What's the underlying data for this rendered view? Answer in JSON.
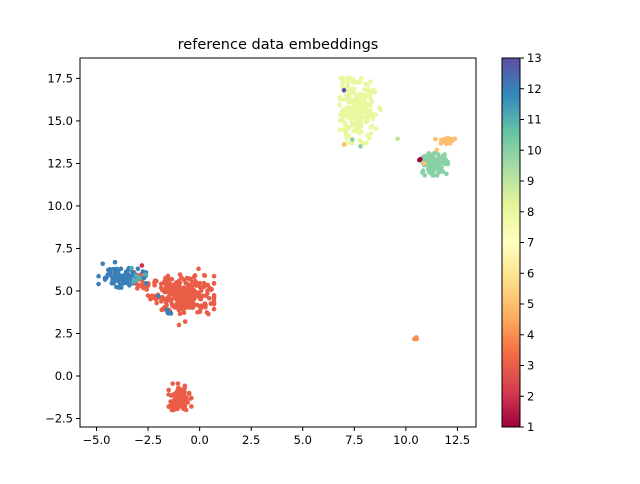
{
  "chart_data": {
    "type": "scatter",
    "title": "reference data embeddings",
    "xlabel": "",
    "ylabel": "",
    "xlim": [
      -5.8,
      13.4
    ],
    "ylim": [
      -3.0,
      18.7
    ],
    "xticks": [
      -5.0,
      -2.5,
      0.0,
      2.5,
      5.0,
      7.5,
      10.0,
      12.5
    ],
    "yticks": [
      -2.5,
      0.0,
      2.5,
      5.0,
      7.5,
      10.0,
      12.5,
      15.0,
      17.5
    ],
    "xtick_labels": [
      "−5.0",
      "−2.5",
      "0.0",
      "2.5",
      "5.0",
      "7.5",
      "10.0",
      "12.5"
    ],
    "ytick_labels": [
      "−2.5",
      "0.0",
      "2.5",
      "5.0",
      "7.5",
      "10.0",
      "12.5",
      "15.0",
      "17.5"
    ],
    "grid": false,
    "colormap": "Spectral",
    "colorbar": {
      "min": 1,
      "max": 13,
      "ticks": [
        1,
        2,
        3,
        4,
        5,
        6,
        7,
        8,
        9,
        10,
        11,
        12,
        13
      ],
      "tick_labels": [
        "1",
        "2",
        "3",
        "4",
        "5",
        "6",
        "7",
        "8",
        "9",
        "10",
        "11",
        "12",
        "13"
      ],
      "stops": [
        {
          "v": 0.0,
          "color": "#9e0142"
        },
        {
          "v": 0.1,
          "color": "#d53e4f"
        },
        {
          "v": 0.2,
          "color": "#f46d43"
        },
        {
          "v": 0.3,
          "color": "#fdae61"
        },
        {
          "v": 0.4,
          "color": "#fee08b"
        },
        {
          "v": 0.5,
          "color": "#ffffbf"
        },
        {
          "v": 0.6,
          "color": "#e6f598"
        },
        {
          "v": 0.7,
          "color": "#abdda4"
        },
        {
          "v": 0.8,
          "color": "#66c2a5"
        },
        {
          "v": 0.9,
          "color": "#3288bd"
        },
        {
          "v": 1.0,
          "color": "#5e4fa2"
        }
      ]
    },
    "clusters": [
      {
        "label": 3,
        "cx": -0.8,
        "cy": 4.8,
        "sx": 0.75,
        "sy": 0.55,
        "n": 260,
        "xr": [
          -2.5,
          0.7
        ],
        "yr": [
          2.9,
          6.3
        ]
      },
      {
        "label": 3,
        "cx": -1.0,
        "cy": -1.4,
        "sx": 0.25,
        "sy": 0.35,
        "n": 90,
        "xr": [
          -1.5,
          -0.4
        ],
        "yr": [
          -2.0,
          -0.4
        ]
      },
      {
        "label": 3,
        "cx": -2.8,
        "cy": 5.5,
        "sx": 0.3,
        "sy": 0.35,
        "n": 25,
        "xr": [
          -3.3,
          -2.2
        ],
        "yr": [
          4.9,
          6.5
        ]
      },
      {
        "label": 12,
        "cx": -3.9,
        "cy": 5.8,
        "sx": 0.5,
        "sy": 0.3,
        "n": 85,
        "xr": [
          -4.9,
          -2.6
        ],
        "yr": [
          5.2,
          6.7
        ]
      },
      {
        "label": 11,
        "cx": -3.0,
        "cy": 5.8,
        "sx": 0.3,
        "sy": 0.2,
        "n": 8,
        "xr": [
          -3.4,
          -2.6
        ],
        "yr": [
          5.5,
          6.4
        ]
      },
      {
        "label": 12,
        "cx": -1.5,
        "cy": 3.7,
        "sx": 0.1,
        "sy": 0.1,
        "n": 4,
        "xr": [
          -1.7,
          -1.3
        ],
        "yr": [
          3.6,
          3.9
        ]
      },
      {
        "label": 8,
        "cx": 7.6,
        "cy": 15.6,
        "sx": 0.45,
        "sy": 0.9,
        "n": 230,
        "xr": [
          6.8,
          8.8
        ],
        "yr": [
          13.7,
          17.5
        ]
      },
      {
        "label": 10,
        "cx": 11.4,
        "cy": 12.5,
        "sx": 0.3,
        "sy": 0.3,
        "n": 120,
        "xr": [
          10.8,
          12.1
        ],
        "yr": [
          11.8,
          13.1
        ]
      },
      {
        "label": 5,
        "cx": 12.0,
        "cy": 13.8,
        "sx": 0.3,
        "sy": 0.15,
        "n": 22,
        "xr": [
          11.4,
          12.6
        ],
        "yr": [
          13.4,
          14.2
        ]
      },
      {
        "label": 4,
        "cx": 10.5,
        "cy": 2.2,
        "sx": 0.05,
        "sy": 0.05,
        "n": 4,
        "xr": [
          10.4,
          10.6
        ],
        "yr": [
          2.1,
          2.3
        ]
      }
    ],
    "points": [
      {
        "x": 7.0,
        "y": 16.8,
        "label": 13
      },
      {
        "x": 10.65,
        "y": 12.7,
        "label": 1
      },
      {
        "x": 10.7,
        "y": 12.75,
        "label": 1
      },
      {
        "x": 9.6,
        "y": 13.95,
        "label": 9
      },
      {
        "x": 7.4,
        "y": 13.9,
        "label": 10
      },
      {
        "x": 7.8,
        "y": 13.5,
        "label": 10
      },
      {
        "x": 7.0,
        "y": 13.6,
        "label": 5
      },
      {
        "x": 10.9,
        "y": 12.5,
        "label": 5
      },
      {
        "x": 11.5,
        "y": 13.3,
        "label": 5
      },
      {
        "x": 11.3,
        "y": 12.9,
        "label": 10
      },
      {
        "x": -2.8,
        "y": 6.5,
        "label": 2
      },
      {
        "x": -1.0,
        "y": 3.0,
        "label": 3
      },
      {
        "x": -0.7,
        "y": 3.2,
        "label": 3
      },
      {
        "x": -1.05,
        "y": -0.45,
        "label": 3
      },
      {
        "x": -4.7,
        "y": 6.6,
        "label": 12
      },
      {
        "x": -2.0,
        "y": 4.7,
        "label": 12
      },
      {
        "x": -1.55,
        "y": 3.75,
        "label": 12
      },
      {
        "x": -3.3,
        "y": 6.35,
        "label": 11
      }
    ]
  }
}
